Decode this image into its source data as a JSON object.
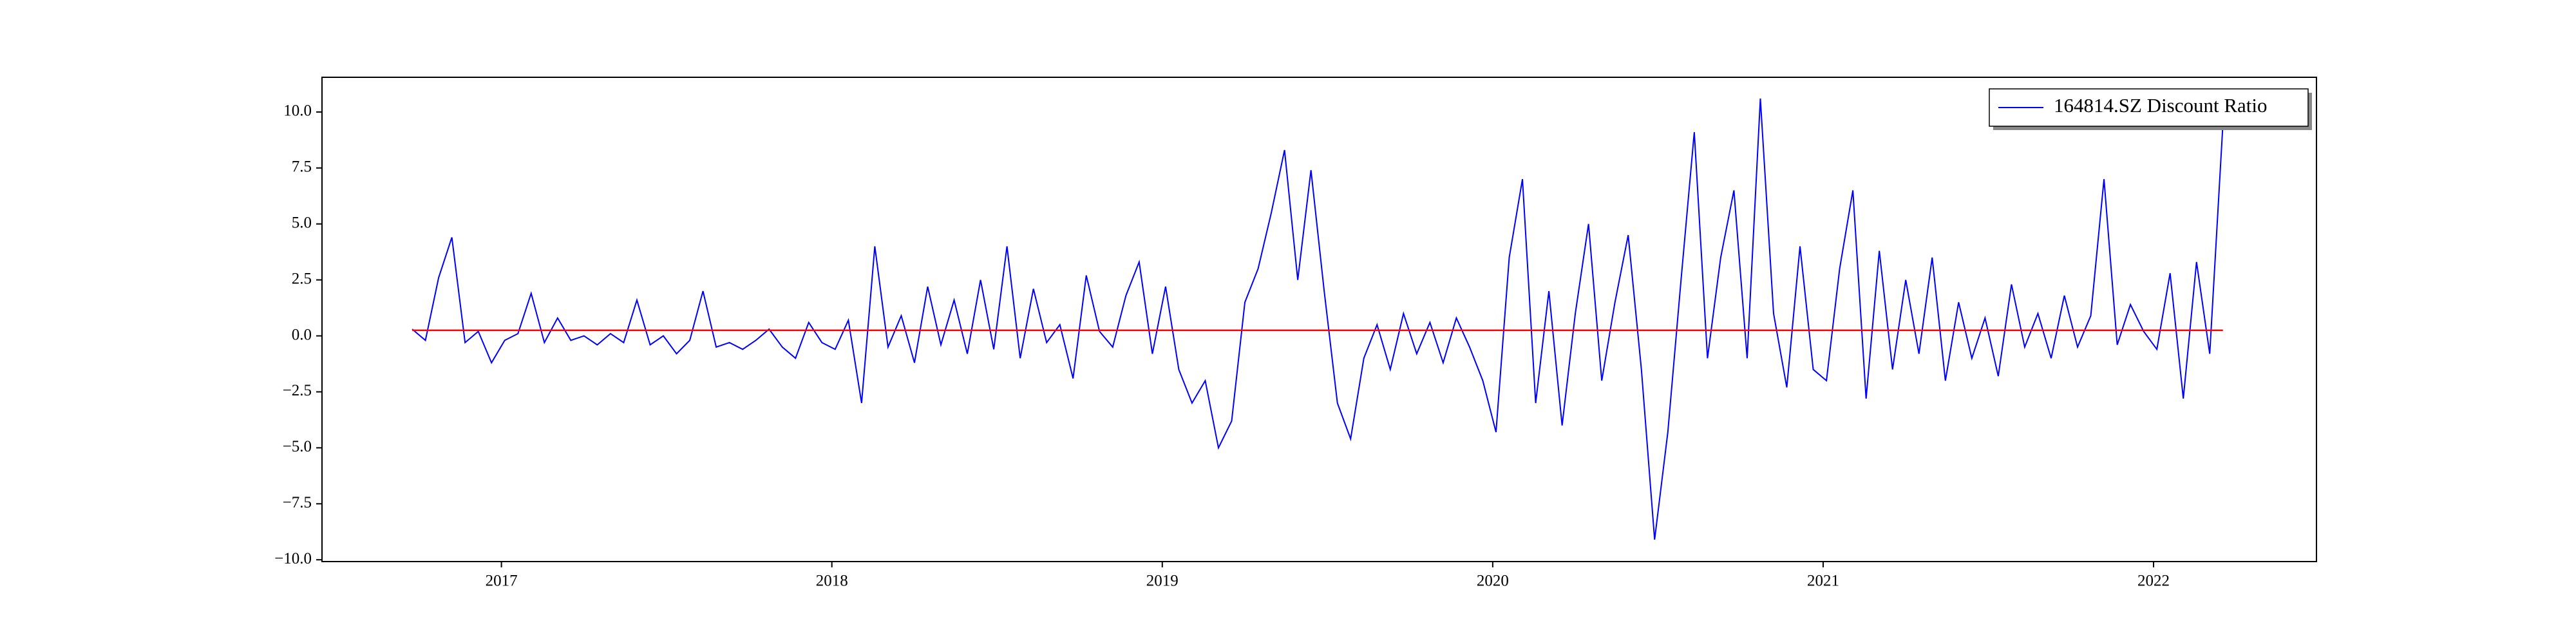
{
  "chart_data": {
    "type": "line",
    "x": [
      2016.73,
      2016.77,
      2016.81,
      2016.85,
      2016.89,
      2016.93,
      2016.97,
      2017.01,
      2017.05,
      2017.09,
      2017.13,
      2017.17,
      2017.21,
      2017.25,
      2017.29,
      2017.33,
      2017.37,
      2017.41,
      2017.45,
      2017.49,
      2017.53,
      2017.57,
      2017.61,
      2017.65,
      2017.69,
      2017.73,
      2017.77,
      2017.81,
      2017.85,
      2017.89,
      2017.93,
      2017.97,
      2018.01,
      2018.05,
      2018.09,
      2018.13,
      2018.17,
      2018.21,
      2018.25,
      2018.29,
      2018.33,
      2018.37,
      2018.41,
      2018.45,
      2018.49,
      2018.53,
      2018.57,
      2018.61,
      2018.65,
      2018.69,
      2018.73,
      2018.77,
      2018.81,
      2018.85,
      2018.89,
      2018.93,
      2018.97,
      2019.01,
      2019.05,
      2019.09,
      2019.13,
      2019.17,
      2019.21,
      2019.25,
      2019.29,
      2019.33,
      2019.37,
      2019.41,
      2019.45,
      2019.49,
      2019.53,
      2019.57,
      2019.61,
      2019.65,
      2019.69,
      2019.73,
      2019.77,
      2019.81,
      2019.85,
      2019.89,
      2019.93,
      2019.97,
      2020.01,
      2020.05,
      2020.09,
      2020.13,
      2020.17,
      2020.21,
      2020.25,
      2020.29,
      2020.33,
      2020.37,
      2020.41,
      2020.45,
      2020.49,
      2020.53,
      2020.57,
      2020.61,
      2020.65,
      2020.69,
      2020.73,
      2020.77,
      2020.81,
      2020.85,
      2020.89,
      2020.93,
      2020.97,
      2021.01,
      2021.05,
      2021.09,
      2021.13,
      2021.17,
      2021.21,
      2021.25,
      2021.29,
      2021.33,
      2021.37,
      2021.41,
      2021.45,
      2021.49,
      2021.53,
      2021.57,
      2021.61,
      2021.65,
      2021.69,
      2021.73,
      2021.77,
      2021.81,
      2021.85,
      2021.89,
      2021.93,
      2021.97,
      2022.01,
      2022.05,
      2022.09,
      2022.13,
      2022.17,
      2022.21
    ],
    "series": [
      {
        "name": "164814.SZ Discount Ratio",
        "color": "#0000ff",
        "values": [
          0.3,
          -0.2,
          2.6,
          4.4,
          -0.3,
          0.2,
          -1.2,
          -0.2,
          0.1,
          1.9,
          -0.3,
          0.8,
          -0.2,
          0.0,
          -0.4,
          0.1,
          -0.3,
          1.6,
          -0.4,
          0.0,
          -0.8,
          -0.2,
          2.0,
          -0.5,
          -0.3,
          -0.6,
          -0.2,
          0.3,
          -0.5,
          -1.0,
          0.6,
          -0.3,
          -0.6,
          0.7,
          -3.0,
          4.0,
          -0.5,
          0.9,
          -1.2,
          2.2,
          -0.4,
          1.6,
          -0.8,
          2.5,
          -0.6,
          4.0,
          -1.0,
          2.1,
          -0.3,
          0.5,
          -1.9,
          2.7,
          0.2,
          -0.5,
          1.8,
          3.3,
          -0.8,
          2.2,
          -1.5,
          -3.0,
          -2.0,
          -5.0,
          -3.8,
          1.5,
          3.0,
          5.5,
          8.3,
          2.5,
          7.4,
          2.0,
          -3.0,
          -4.6,
          -1.0,
          0.5,
          -1.5,
          1.0,
          -0.8,
          0.6,
          -1.2,
          0.8,
          -0.5,
          -2.0,
          -4.3,
          3.5,
          7.0,
          -3.0,
          2.0,
          -4.0,
          1.0,
          5.0,
          -2.0,
          1.5,
          4.5,
          -1.5,
          -9.1,
          -4.3,
          2.5,
          9.1,
          -1.0,
          3.5,
          6.5,
          -1.0,
          10.6,
          1.0,
          -2.3,
          4.0,
          -1.5,
          -2.0,
          3.0,
          6.5,
          -2.8,
          3.8,
          -1.5,
          2.5,
          -0.8,
          3.5,
          -2.0,
          1.5,
          -1.0,
          0.8,
          -1.8,
          2.3,
          -0.5,
          1.0,
          -1.0,
          1.8,
          -0.5,
          0.9,
          7.0,
          -0.4,
          1.4,
          0.2,
          -0.6,
          2.8,
          -2.8,
          3.3,
          -0.8,
          9.5
        ]
      }
    ],
    "mean_line": {
      "value": 0.25,
      "color": "#ff0000"
    },
    "xlim": [
      2016.457,
      2022.493
    ],
    "xticks": [
      2017,
      2018,
      2019,
      2020,
      2021,
      2022
    ],
    "ylim": [
      -10.08,
      11.55
    ],
    "yticks": [
      {
        "value": -10,
        "label": "−10.0"
      },
      {
        "value": -7.5,
        "label": "−7.5"
      },
      {
        "value": -5,
        "label": "−5.0"
      },
      {
        "value": -2.5,
        "label": "−2.5"
      },
      {
        "value": 0,
        "label": "0.0"
      },
      {
        "value": 2.5,
        "label": "2.5"
      },
      {
        "value": 5,
        "label": "5.0"
      },
      {
        "value": 7.5,
        "label": "7.5"
      },
      {
        "value": 10,
        "label": "10.0"
      }
    ],
    "legend": "upper right"
  }
}
